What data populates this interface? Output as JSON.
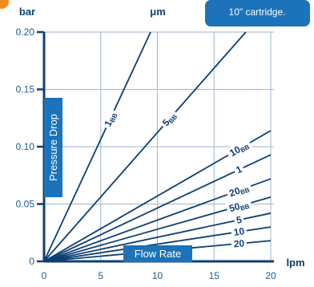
{
  "note": "10\" cartridge.",
  "chart_data": {
    "type": "line",
    "y_unit": "bar",
    "micron_unit": "μm",
    "x_unit": "lpm",
    "ylabel": "Pressure Drop",
    "xlabel": "Flow Rate",
    "xlim": [
      0,
      20
    ],
    "ylim": [
      0,
      0.2
    ],
    "x_ticks": [
      "0",
      "5",
      "10",
      "15",
      "20"
    ],
    "y_ticks": [
      "0",
      "0.05",
      "0.10",
      "0.15",
      "0.20"
    ],
    "grid": true,
    "series": [
      {
        "name": "1BB",
        "label_main": "1",
        "label_sub": "BB",
        "x": [
          0,
          9.4
        ],
        "y": [
          0,
          0.2
        ]
      },
      {
        "name": "5BB",
        "label_main": "5",
        "label_sub": "BB",
        "x": [
          0,
          17.8
        ],
        "y": [
          0,
          0.2
        ]
      },
      {
        "name": "10BB",
        "label_main": "10",
        "label_sub": "BB",
        "x": [
          0,
          20
        ],
        "y": [
          0,
          0.114
        ]
      },
      {
        "name": "1",
        "label_main": "1",
        "label_sub": "",
        "x": [
          0,
          20
        ],
        "y": [
          0,
          0.093
        ]
      },
      {
        "name": "20BB",
        "label_main": "20",
        "label_sub": "BB",
        "x": [
          0,
          20
        ],
        "y": [
          0,
          0.072
        ]
      },
      {
        "name": "50BB",
        "label_main": "50",
        "label_sub": "BB",
        "x": [
          0,
          20
        ],
        "y": [
          0,
          0.056
        ]
      },
      {
        "name": "5",
        "label_main": "5",
        "label_sub": "",
        "x": [
          0,
          20
        ],
        "y": [
          0,
          0.042
        ]
      },
      {
        "name": "10",
        "label_main": "10",
        "label_sub": "",
        "x": [
          0,
          20
        ],
        "y": [
          0,
          0.03
        ]
      },
      {
        "name": "20",
        "label_main": "20",
        "label_sub": "",
        "x": [
          0,
          20
        ],
        "y": [
          0,
          0.018
        ]
      }
    ]
  }
}
